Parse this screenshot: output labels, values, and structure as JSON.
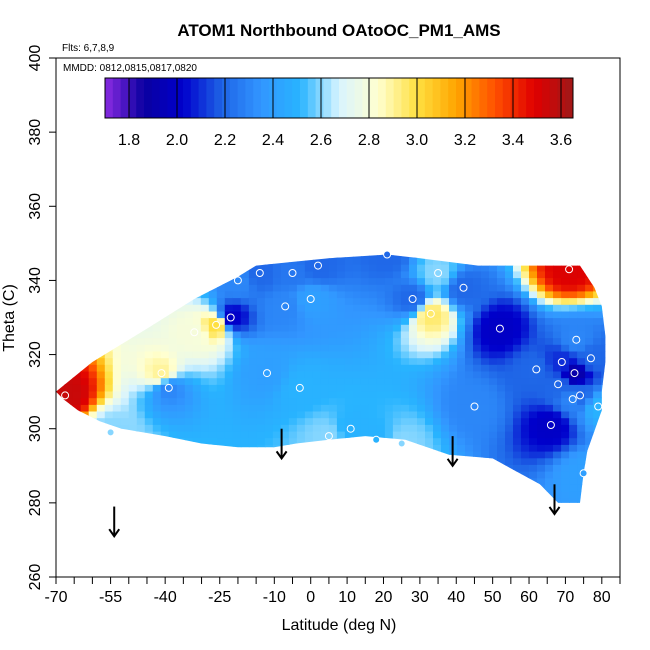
{
  "chart_data": {
    "type": "heatmap",
    "title": "ATOM1 Northbound OAtoOC_PM1_AMS",
    "flights_label": "Flts: 6,7,8,9",
    "dates_label": "MMDD: 0812,0815,0817,0820",
    "xlabel": "Latitude (deg N)",
    "ylabel": "Theta (C)",
    "xlim": [
      -70,
      85
    ],
    "ylim": [
      260,
      400
    ],
    "x_ticks": [
      -70,
      -55,
      -40,
      -25,
      -10,
      0,
      10,
      20,
      30,
      40,
      50,
      60,
      70,
      80
    ],
    "x_tick_labels": [
      "-70",
      "-55",
      "-40",
      "-25",
      "-10",
      "0",
      "10",
      "20",
      "30",
      "40",
      "50",
      "60",
      "70",
      "80"
    ],
    "x_minor_ticks": [
      -65,
      -60,
      -50,
      -45,
      -35,
      -30,
      -20,
      -15,
      -5,
      5,
      15,
      25,
      35,
      45,
      55,
      65,
      75,
      85
    ],
    "y_ticks": [
      260,
      280,
      300,
      320,
      340,
      360,
      380,
      400
    ],
    "y_tick_labels": [
      "260",
      "280",
      "300",
      "320",
      "340",
      "360",
      "380",
      "400"
    ],
    "colorbar": {
      "range": [
        1.7,
        3.65
      ],
      "ticks": [
        1.8,
        2.0,
        2.2,
        2.4,
        2.6,
        2.8,
        3.0,
        3.2,
        3.4,
        3.6
      ],
      "tick_labels": [
        "1.8",
        "2.0",
        "2.2",
        "2.4",
        "2.6",
        "2.8",
        "3.0",
        "3.2",
        "3.4",
        "3.6"
      ],
      "colors": [
        "#8a2be2",
        "#0a00a0",
        "#0000cc",
        "#1e64e6",
        "#3296ff",
        "#28b4ff",
        "#d8f4ff",
        "#ffffd0",
        "#ffe040",
        "#ffa500",
        "#ff5000",
        "#e00000",
        "#a01818"
      ]
    },
    "points": [
      {
        "x": -67.5,
        "y": 309,
        "v": 3.55
      },
      {
        "x": -55,
        "y": 299,
        "v": 2.6
      },
      {
        "x": -41,
        "y": 315,
        "v": 2.9
      },
      {
        "x": -39,
        "y": 311,
        "v": 2.3
      },
      {
        "x": -32,
        "y": 326,
        "v": 2.8
      },
      {
        "x": -26,
        "y": 328,
        "v": 3.0
      },
      {
        "x": -22,
        "y": 330,
        "v": 2.0
      },
      {
        "x": -20,
        "y": 340,
        "v": 2.3
      },
      {
        "x": -14,
        "y": 342,
        "v": 2.2
      },
      {
        "x": -12,
        "y": 315,
        "v": 2.4
      },
      {
        "x": -7,
        "y": 333,
        "v": 2.3
      },
      {
        "x": -5,
        "y": 342,
        "v": 2.25
      },
      {
        "x": -3,
        "y": 311,
        "v": 2.5
      },
      {
        "x": 0,
        "y": 335,
        "v": 2.4
      },
      {
        "x": 2,
        "y": 344,
        "v": 2.2
      },
      {
        "x": 5,
        "y": 298,
        "v": 2.6
      },
      {
        "x": 11,
        "y": 300,
        "v": 2.5
      },
      {
        "x": 18,
        "y": 297,
        "v": 2.5
      },
      {
        "x": 21,
        "y": 347,
        "v": 2.2
      },
      {
        "x": 25,
        "y": 296,
        "v": 2.6
      },
      {
        "x": 28,
        "y": 335,
        "v": 2.2
      },
      {
        "x": 33,
        "y": 331,
        "v": 2.95
      },
      {
        "x": 35,
        "y": 342,
        "v": 2.6
      },
      {
        "x": 42,
        "y": 338,
        "v": 2.2
      },
      {
        "x": 45,
        "y": 306,
        "v": 2.3
      },
      {
        "x": 52,
        "y": 327,
        "v": 2.0
      },
      {
        "x": 62,
        "y": 316,
        "v": 2.2
      },
      {
        "x": 66,
        "y": 301,
        "v": 2.0
      },
      {
        "x": 68,
        "y": 312,
        "v": 2.2
      },
      {
        "x": 69,
        "y": 318,
        "v": 2.1
      },
      {
        "x": 71,
        "y": 343,
        "v": 3.5
      },
      {
        "x": 72,
        "y": 308,
        "v": 2.3
      },
      {
        "x": 72.5,
        "y": 315,
        "v": 1.9
      },
      {
        "x": 73,
        "y": 324,
        "v": 2.3
      },
      {
        "x": 74,
        "y": 309,
        "v": 2.2
      },
      {
        "x": 75,
        "y": 288,
        "v": 2.4
      },
      {
        "x": 77,
        "y": 319,
        "v": 2.2
      },
      {
        "x": 79,
        "y": 306,
        "v": 2.5
      }
    ],
    "hull": [
      [
        -70,
        310
      ],
      [
        -60,
        318
      ],
      [
        -45,
        327
      ],
      [
        -32,
        335
      ],
      [
        -20,
        341
      ],
      [
        -15,
        344
      ],
      [
        -5,
        345
      ],
      [
        5,
        346
      ],
      [
        21,
        347
      ],
      [
        30,
        346
      ],
      [
        46,
        344
      ],
      [
        58,
        344
      ],
      [
        74,
        344
      ],
      [
        78,
        338
      ],
      [
        80,
        333
      ],
      [
        81,
        325
      ],
      [
        81,
        318
      ],
      [
        80,
        310
      ],
      [
        80,
        305
      ],
      [
        76,
        294
      ],
      [
        75,
        288
      ],
      [
        74,
        280
      ],
      [
        68,
        280
      ],
      [
        63,
        285
      ],
      [
        50,
        292
      ],
      [
        38,
        293
      ],
      [
        26,
        297
      ],
      [
        15,
        298
      ],
      [
        5,
        297
      ],
      [
        -4,
        296
      ],
      [
        -10,
        295
      ],
      [
        -20,
        295
      ],
      [
        -30,
        296
      ],
      [
        -40,
        298
      ],
      [
        -52,
        300
      ],
      [
        -58,
        302
      ],
      [
        -64,
        305
      ],
      [
        -68,
        308
      ]
    ],
    "arrows": [
      {
        "x": -54,
        "y_top": 279,
        "y_bottom": 271
      },
      {
        "x": -8,
        "y_top": 300,
        "y_bottom": 292
      },
      {
        "x": 39,
        "y_top": 298,
        "y_bottom": 290
      },
      {
        "x": 67,
        "y_top": 285,
        "y_bottom": 277
      }
    ]
  }
}
